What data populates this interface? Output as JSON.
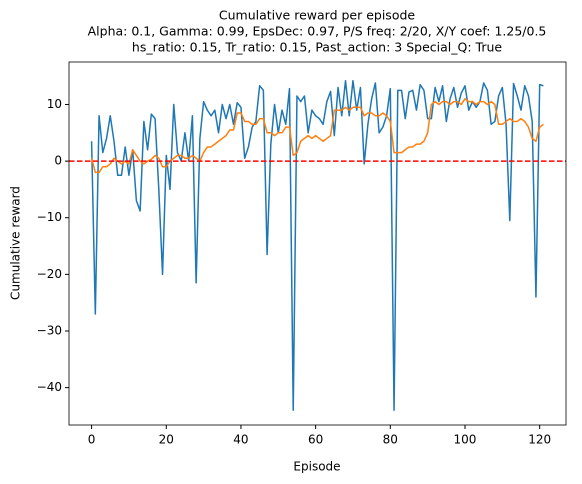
{
  "chart_data": {
    "type": "line",
    "title": [
      "Cumulative reward per episode",
      "Alpha: 0.1, Gamma: 0.99, EpsDec: 0.97, P/S freq: 2/20, X/Y coef: 1.25/0.5",
      "hs_ratio: 0.15, Tr_ratio: 0.15, Past_action: 3 Special_Q: True"
    ],
    "x_label": "Episode",
    "y_label": "Cumulative reward",
    "x": [
      0,
      1,
      2,
      3,
      4,
      5,
      6,
      7,
      8,
      9,
      10,
      11,
      12,
      13,
      14,
      15,
      16,
      17,
      18,
      19,
      20,
      21,
      22,
      23,
      24,
      25,
      26,
      27,
      28,
      29,
      30,
      31,
      32,
      33,
      34,
      35,
      36,
      37,
      38,
      39,
      40,
      41,
      42,
      43,
      44,
      45,
      46,
      47,
      48,
      49,
      50,
      51,
      52,
      53,
      54,
      55,
      56,
      57,
      58,
      59,
      60,
      61,
      62,
      63,
      64,
      65,
      66,
      67,
      68,
      69,
      70,
      71,
      72,
      73,
      74,
      75,
      76,
      77,
      78,
      79,
      80,
      81,
      82,
      83,
      84,
      85,
      86,
      87,
      88,
      89,
      90,
      91,
      92,
      93,
      94,
      95,
      96,
      97,
      98,
      99,
      100,
      101,
      102,
      103,
      104,
      105,
      106,
      107,
      108,
      109,
      110,
      111,
      112,
      113,
      114,
      115,
      116,
      117,
      118,
      119,
      120,
      121
    ],
    "series": [
      {
        "color": "#1f77b4",
        "values": [
          3.5,
          -27,
          8,
          1.5,
          4,
          8,
          3.5,
          -2.5,
          -2.5,
          2.5,
          -2.5,
          2,
          -7,
          -8.8,
          7,
          2,
          8.3,
          7.5,
          -5,
          -20,
          1,
          -5,
          10,
          1.5,
          0,
          5,
          0,
          8,
          -21.5,
          4,
          10.5,
          9,
          8,
          9,
          5,
          10,
          7.5,
          10,
          6.5,
          10.3,
          9.5,
          0.5,
          2.5,
          6,
          7,
          13.3,
          12.5,
          -16.5,
          3,
          10,
          5,
          9,
          6.5,
          12.8,
          -44,
          11.5,
          10.5,
          11.5,
          5,
          9,
          8,
          7.5,
          6.5,
          10.5,
          12.3,
          4.5,
          13,
          8,
          14.2,
          8,
          14.2,
          9,
          13,
          -0.5,
          6.5,
          11,
          13.8,
          5,
          6,
          8,
          12.8,
          -44,
          12.5,
          12.5,
          7.5,
          12.2,
          12.5,
          9,
          13.5,
          12.5,
          7.5,
          7.5,
          13,
          10.5,
          13.3,
          7,
          11,
          13,
          9.5,
          12,
          13.3,
          9,
          10.5,
          9.5,
          10.5,
          13.8,
          12.5,
          6.5,
          7,
          11.5,
          13,
          6.5,
          -10.5,
          13.7,
          11.5,
          9,
          13.3,
          11.5,
          7,
          -24,
          13.5,
          13.3
        ]
      },
      {
        "color": "#ff7f0e",
        "values": [
          0.5,
          -2,
          -2,
          -1,
          -1,
          -0.5,
          0.5,
          0,
          -0.5,
          0,
          -0.5,
          2,
          1,
          0,
          -0.5,
          0,
          0.3,
          1,
          0.5,
          -1,
          -1,
          0,
          0.5,
          1,
          1,
          0.5,
          0.5,
          1,
          0.5,
          0,
          1.5,
          2.5,
          2.5,
          3,
          3.5,
          4,
          4.5,
          5.5,
          5.5,
          8.5,
          8.5,
          7,
          7,
          6.5,
          6.5,
          7.5,
          7.5,
          5,
          5,
          4.5,
          5,
          5,
          6,
          6,
          1,
          1.5,
          3.5,
          4,
          4.5,
          4,
          4.5,
          4,
          3.5,
          4,
          4.5,
          9,
          9,
          9,
          9.5,
          9,
          9.5,
          9.5,
          9.5,
          8,
          8.5,
          8.5,
          8,
          8,
          8.5,
          8,
          7,
          1.5,
          1.5,
          1.5,
          2,
          2.5,
          2.5,
          3,
          3,
          3.5,
          5,
          10,
          10.5,
          10,
          10.5,
          10.5,
          10,
          10.5,
          10.5,
          10,
          11,
          10.5,
          10.5,
          10,
          10.5,
          10.5,
          10,
          10.5,
          10,
          6.5,
          6.5,
          7,
          7.5,
          7,
          7,
          7.5,
          7,
          6,
          4,
          3.5,
          6,
          6.5
        ]
      }
    ],
    "hline": 0,
    "hline_color": "#ff0000",
    "xlim": [
      -6.05,
      127.05
    ],
    "ylim": [
      -46.6,
      17.5
    ],
    "xticks": [
      0,
      20,
      40,
      60,
      80,
      100,
      120
    ],
    "yticks": [
      {
        "value": -40,
        "label": "−40"
      },
      {
        "value": -30,
        "label": "−30"
      },
      {
        "value": -20,
        "label": "−20"
      },
      {
        "value": -10,
        "label": "−10"
      },
      0,
      10
    ],
    "grid": false
  }
}
